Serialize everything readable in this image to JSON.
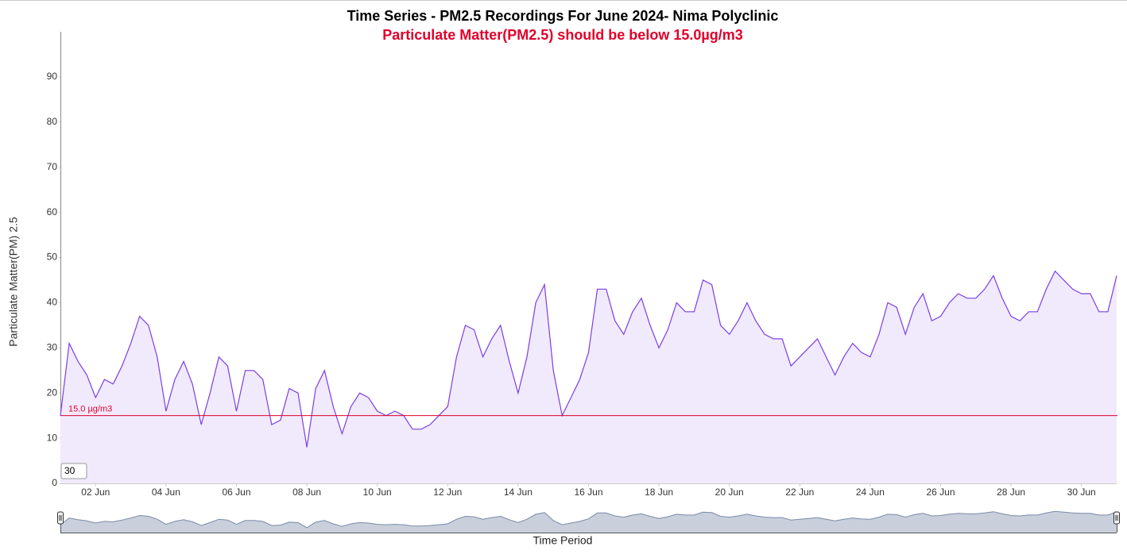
{
  "chart_data": {
    "type": "area",
    "title": "Time Series - PM2.5 Recordings For June 2024- Nima Polyclinic",
    "subtitle": "Particulate Matter(PM2.5) should be below 15.0µg/m3",
    "ylabel": "Particulate Matter(PM) 2.5",
    "xlabel": "Time Period",
    "range_input": "30",
    "color": "#7b3fe4",
    "fill": "#f0eafc",
    "threshold": {
      "value": 15,
      "label": "15.0 µg/m3",
      "color": "#e0002a"
    },
    "xlim": [
      1,
      31
    ],
    "xticks": [
      {
        "value": 2,
        "label": "02 Jun"
      },
      {
        "value": 4,
        "label": "04 Jun"
      },
      {
        "value": 6,
        "label": "06 Jun"
      },
      {
        "value": 8,
        "label": "08 Jun"
      },
      {
        "value": 10,
        "label": "10 Jun"
      },
      {
        "value": 12,
        "label": "12 Jun"
      },
      {
        "value": 14,
        "label": "14 Jun"
      },
      {
        "value": 16,
        "label": "16 Jun"
      },
      {
        "value": 18,
        "label": "18 Jun"
      },
      {
        "value": 20,
        "label": "20 Jun"
      },
      {
        "value": 22,
        "label": "22 Jun"
      },
      {
        "value": 24,
        "label": "24 Jun"
      },
      {
        "value": 26,
        "label": "26 Jun"
      },
      {
        "value": 28,
        "label": "28 Jun"
      },
      {
        "value": 30,
        "label": "30 Jun"
      }
    ],
    "ylim": [
      0,
      100
    ],
    "yticks": [
      0,
      10,
      20,
      30,
      40,
      50,
      60,
      70,
      80,
      90
    ],
    "x": [
      1,
      1.25,
      1.5,
      1.75,
      2,
      2.25,
      2.5,
      2.75,
      3,
      3.25,
      3.5,
      3.75,
      4,
      4.25,
      4.5,
      4.75,
      5,
      5.25,
      5.5,
      5.75,
      6,
      6.25,
      6.5,
      6.75,
      7,
      7.25,
      7.5,
      7.75,
      8,
      8.25,
      8.5,
      8.75,
      9,
      9.25,
      9.5,
      9.75,
      10,
      10.25,
      10.5,
      10.75,
      11,
      11.25,
      11.5,
      11.75,
      12,
      12.25,
      12.5,
      12.75,
      13,
      13.25,
      13.5,
      13.75,
      14,
      14.25,
      14.5,
      14.75,
      15,
      15.25,
      15.5,
      15.75,
      16,
      16.25,
      16.5,
      16.75,
      17,
      17.25,
      17.5,
      17.75,
      18,
      18.25,
      18.5,
      18.75,
      19,
      19.25,
      19.5,
      19.75,
      20,
      20.25,
      20.5,
      20.75,
      21,
      21.25,
      21.5,
      21.75,
      22,
      22.25,
      22.5,
      22.75,
      23,
      23.25,
      23.5,
      23.75,
      24,
      24.25,
      24.5,
      24.75,
      25,
      25.25,
      25.5,
      25.75,
      26,
      26.25,
      26.5,
      26.75,
      27,
      27.25,
      27.5,
      27.75,
      28,
      28.25,
      28.5,
      28.75,
      29,
      29.25,
      29.5,
      29.75,
      30,
      30.25,
      30.5,
      30.75,
      31
    ],
    "values": [
      15,
      31,
      27,
      24,
      19,
      23,
      22,
      26,
      31,
      37,
      35,
      28,
      16,
      23,
      27,
      22,
      13,
      20,
      28,
      26,
      16,
      25,
      25,
      23,
      13,
      14,
      21,
      20,
      8,
      21,
      25,
      17,
      11,
      17,
      20,
      19,
      16,
      15,
      16,
      15,
      12,
      12,
      13,
      15,
      17,
      28,
      35,
      34,
      28,
      32,
      35,
      27,
      20,
      28,
      40,
      44,
      25,
      15,
      19,
      23,
      29,
      43,
      43,
      36,
      33,
      38,
      41,
      35,
      30,
      34,
      40,
      38,
      38,
      45,
      44,
      35,
      33,
      36,
      40,
      36,
      33,
      32,
      32,
      26,
      28,
      30,
      32,
      28,
      24,
      28,
      31,
      29,
      28,
      33,
      40,
      39,
      33,
      39,
      42,
      36,
      37,
      40,
      42,
      41,
      41,
      43,
      46,
      41,
      37,
      36,
      38,
      38,
      43,
      47,
      45,
      43,
      42,
      42,
      38,
      38,
      46
    ]
  }
}
